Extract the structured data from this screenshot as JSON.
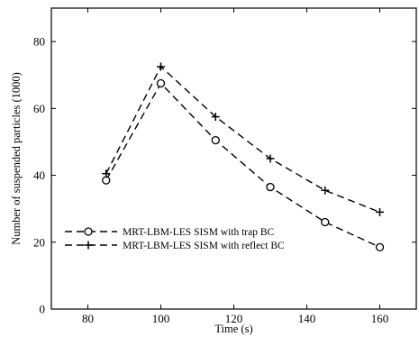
{
  "chart_data": {
    "type": "line",
    "xlabel": "Time (s)",
    "ylabel": "Number of suspended particles (1000)",
    "xlim": [
      70,
      170
    ],
    "ylim": [
      0,
      90
    ],
    "xticks": [
      80,
      100,
      120,
      140,
      160
    ],
    "yticks": [
      0,
      20,
      40,
      60,
      80
    ],
    "x_tick_labels": [
      "80",
      "100",
      "120",
      "140",
      "160"
    ],
    "y_tick_labels": [
      "0",
      "20",
      "40",
      "60",
      "80"
    ],
    "grid": false,
    "legend_position": "lower-left",
    "series": [
      {
        "name": "MRT-LBM-LES SISM with trap BC",
        "marker": "circle",
        "line_style": "dashed",
        "color": "#000000",
        "x": [
          85,
          100,
          115,
          130,
          145,
          160
        ],
        "y": [
          38.5,
          67.5,
          50.5,
          36.5,
          26,
          18.5
        ]
      },
      {
        "name": "MRT-LBM-LES SISM with reflect BC",
        "marker": "plus",
        "line_style": "dashed",
        "color": "#000000",
        "x": [
          85,
          100,
          115,
          130,
          145,
          160
        ],
        "y": [
          40.5,
          72.5,
          57.5,
          45,
          35.5,
          29
        ]
      }
    ]
  }
}
